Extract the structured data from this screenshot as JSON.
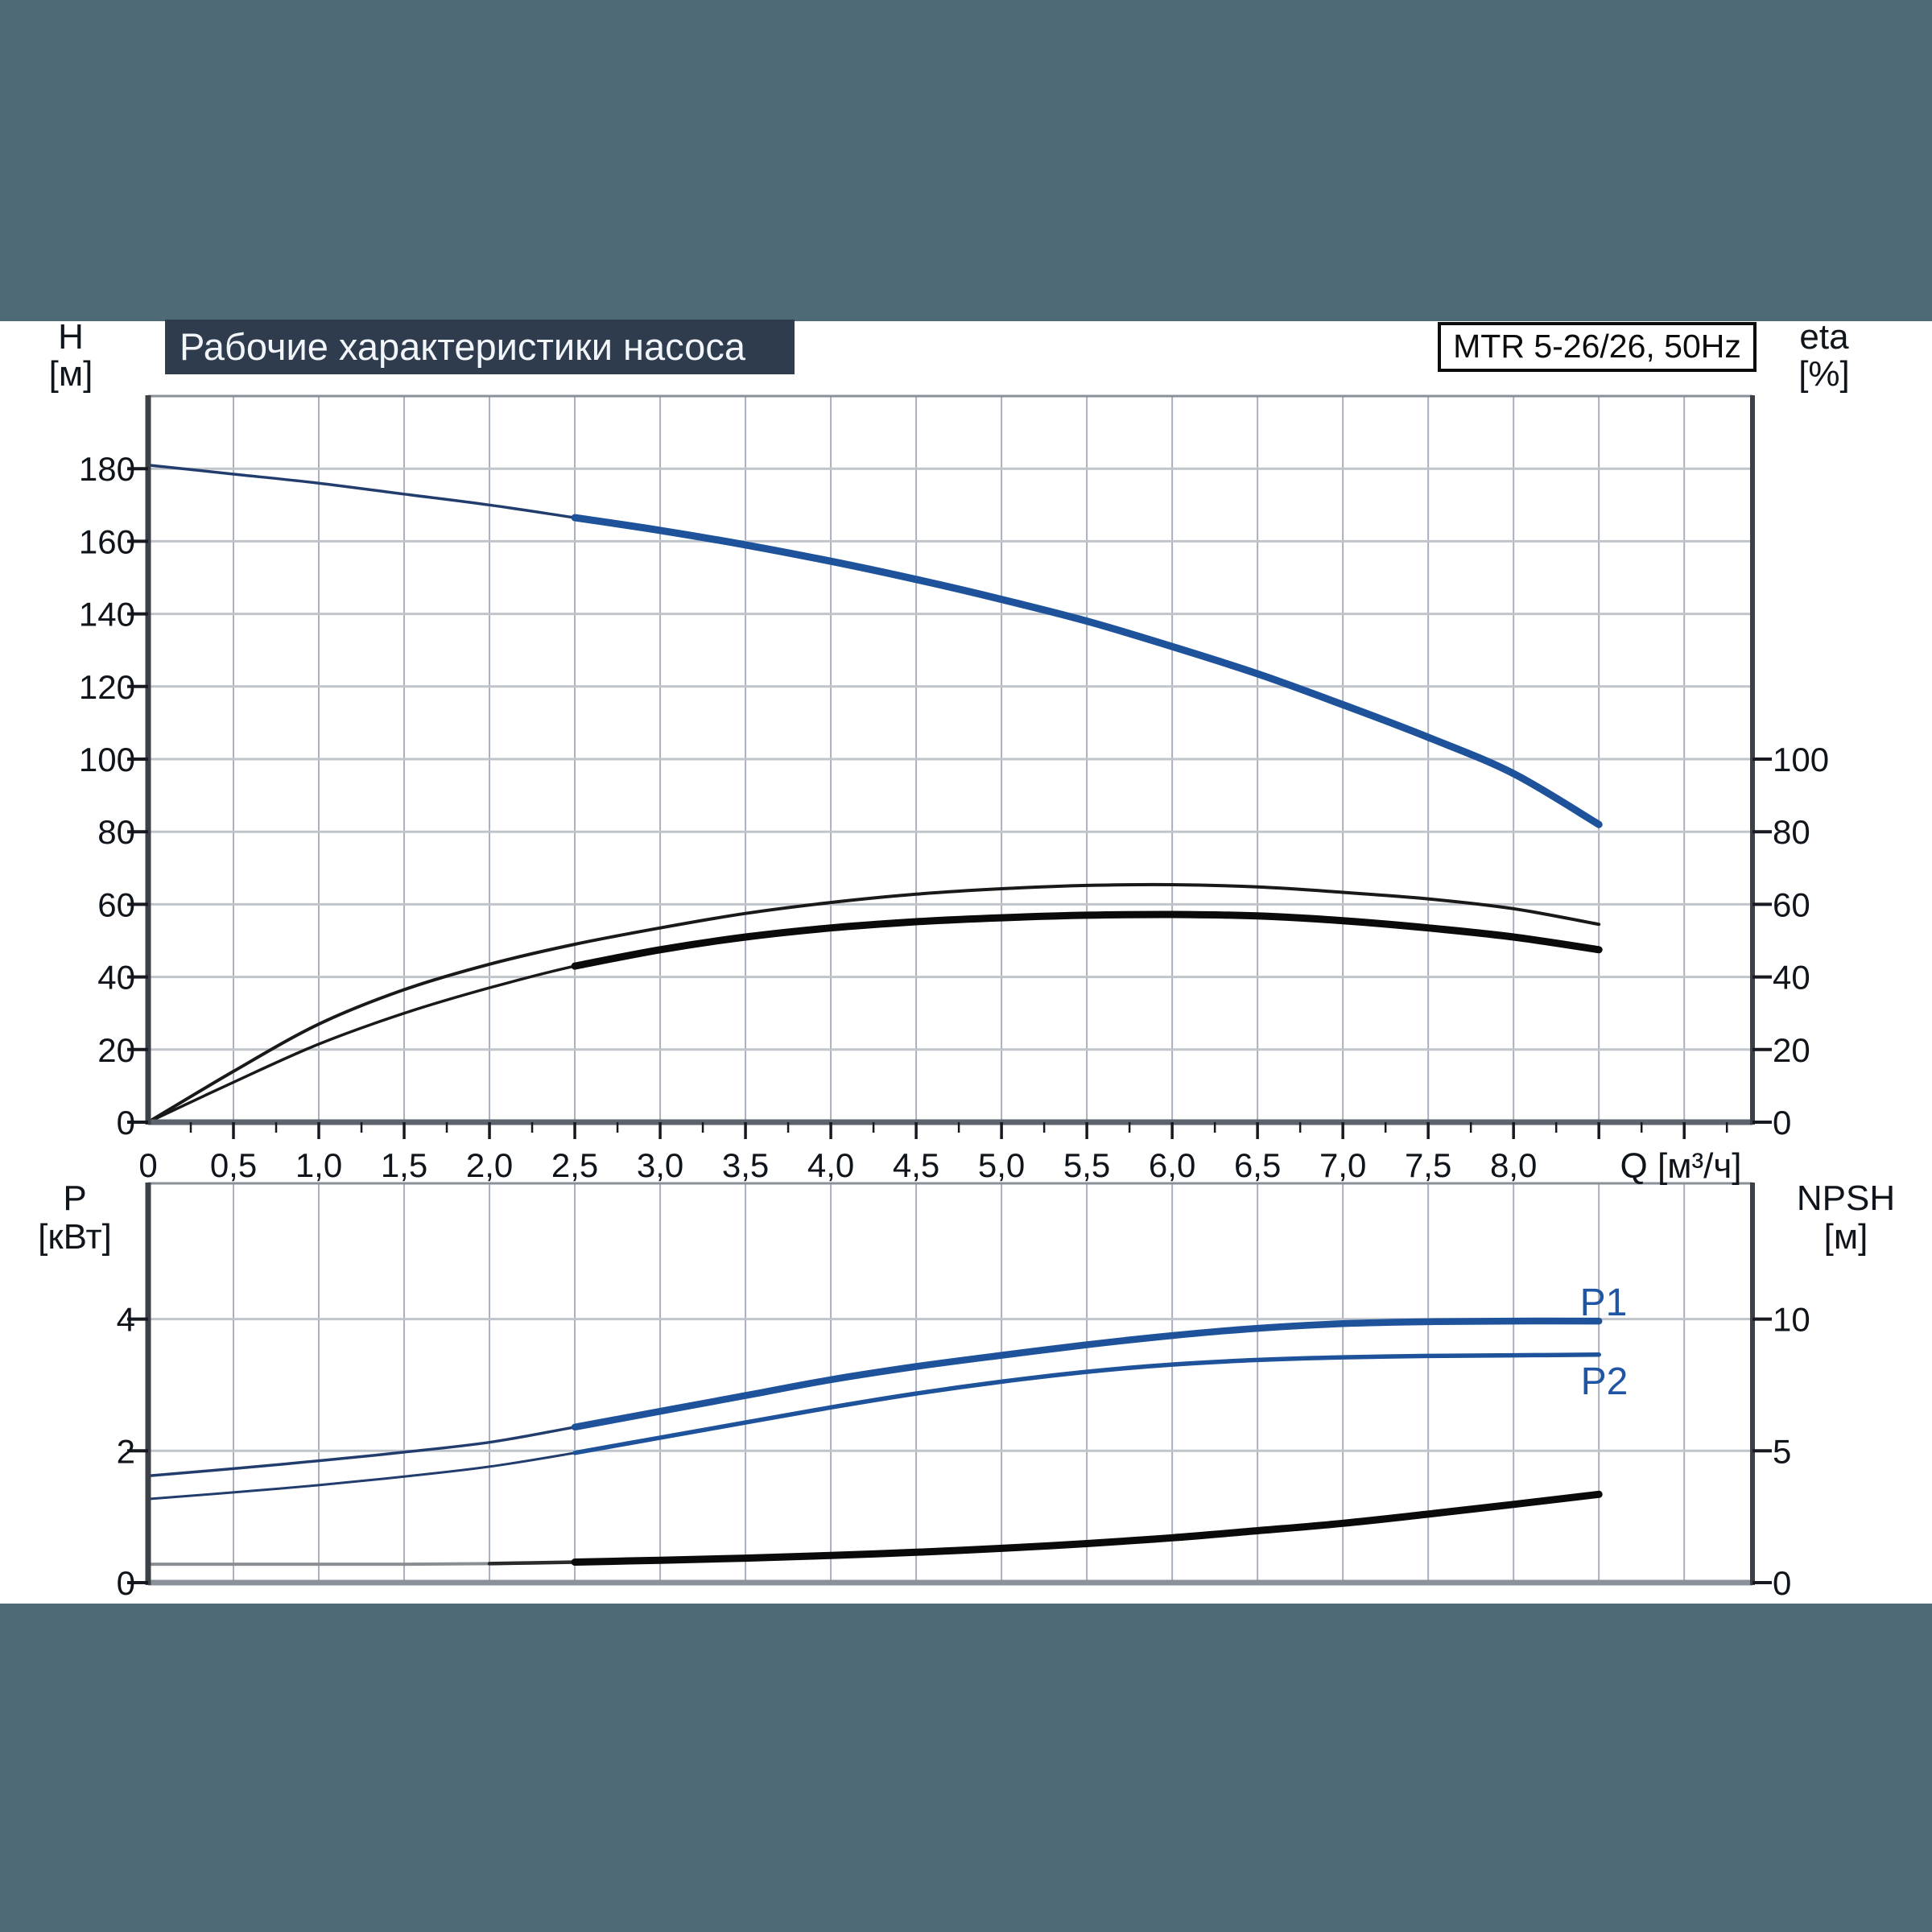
{
  "header": {
    "title": "Рабочие характеристики насоса",
    "model": "MTR 5-26/26, 50Hz"
  },
  "page": {
    "background": "#ffffff",
    "band_color": "#4e6a76",
    "title_box_bg": "#2e3c4e",
    "curve_blue": "#1e529a",
    "curve_blue_thin": "#223d6d",
    "curve_black": "#0a0a0a",
    "npsh_start_gray": "#8a8d93"
  },
  "chart_data": [
    {
      "id": "head_and_efficiency",
      "type": "line",
      "title": "Pump head (H) and efficiency (eta) vs flow",
      "x_label": "Q [м³/ч]",
      "xlim": [
        0,
        9.4
      ],
      "grid_step_x": 0.5,
      "minor_tick_step_x": 0.25,
      "x_tick_values": [
        0,
        0.5,
        1,
        1.5,
        2,
        2.5,
        3,
        3.5,
        4,
        4.5,
        5,
        5.5,
        6,
        6.5,
        7,
        7.5,
        8
      ],
      "x_tick_labels": [
        "0",
        "0,5",
        "1,0",
        "1,5",
        "2,0",
        "2,5",
        "3,0",
        "3,5",
        "4,0",
        "4,5",
        "5,0",
        "5,5",
        "6,0",
        "6,5",
        "7,0",
        "7,5",
        "8,0"
      ],
      "left_axis": {
        "label": "H",
        "unit": "[м]",
        "lim": [
          0,
          200
        ],
        "grid_step": 20,
        "ticks": [
          0,
          20,
          40,
          60,
          80,
          100,
          120,
          140,
          160,
          180
        ]
      },
      "right_axis": {
        "label": "eta",
        "unit": "[%]",
        "ticks": [
          0,
          20,
          40,
          60,
          80,
          100
        ],
        "note": "eta % labels share gridlines with H values 0-100"
      },
      "rated_range_from_q": 2.5,
      "series": [
        {
          "name": "H",
          "axis": "left",
          "points": [
            [
              0,
              181
            ],
            [
              0.5,
              178.5
            ],
            [
              1,
              176
            ],
            [
              1.5,
              173
            ],
            [
              2,
              170
            ],
            [
              2.5,
              166.5
            ],
            [
              3,
              163
            ],
            [
              3.5,
              159
            ],
            [
              4,
              154.5
            ],
            [
              4.5,
              149.5
            ],
            [
              5,
              144
            ],
            [
              5.5,
              138
            ],
            [
              6,
              131
            ],
            [
              6.5,
              123.5
            ],
            [
              7,
              115
            ],
            [
              7.5,
              106
            ],
            [
              8,
              96
            ],
            [
              8.5,
              82
            ]
          ]
        },
        {
          "name": "eta_max_impeller",
          "axis": "right",
          "points": [
            [
              0,
              0
            ],
            [
              0.5,
              14
            ],
            [
              1,
              27
            ],
            [
              1.5,
              36.5
            ],
            [
              2,
              43.5
            ],
            [
              2.5,
              49
            ],
            [
              3,
              53.5
            ],
            [
              3.5,
              57.5
            ],
            [
              4,
              60.5
            ],
            [
              4.5,
              62.8
            ],
            [
              5,
              64.3
            ],
            [
              5.5,
              65.2
            ],
            [
              6,
              65.4
            ],
            [
              6.5,
              64.8
            ],
            [
              7,
              63.3
            ],
            [
              7.5,
              61.5
            ],
            [
              8,
              58.8
            ],
            [
              8.5,
              54.5
            ]
          ]
        },
        {
          "name": "eta_rated",
          "axis": "right",
          "points": [
            [
              0,
              0
            ],
            [
              0.5,
              11
            ],
            [
              1,
              21.5
            ],
            [
              1.5,
              30
            ],
            [
              2,
              37
            ],
            [
              2.5,
              43
            ],
            [
              3,
              47.5
            ],
            [
              3.5,
              51
            ],
            [
              4,
              53.5
            ],
            [
              4.5,
              55.2
            ],
            [
              5,
              56.3
            ],
            [
              5.5,
              57
            ],
            [
              6,
              57.2
            ],
            [
              6.5,
              56.8
            ],
            [
              7,
              55.5
            ],
            [
              7.5,
              53.5
            ],
            [
              8,
              51
            ],
            [
              8.5,
              47.5
            ]
          ]
        }
      ]
    },
    {
      "id": "power_and_npsh",
      "type": "line",
      "title": "Power (P1, P2) and NPSH vs flow",
      "xlim": [
        0,
        9.4
      ],
      "grid_step_x": 0.5,
      "left_axis": {
        "label": "P",
        "unit": "[кВт]",
        "lim": [
          0,
          6.06
        ],
        "ticks": [
          0,
          2,
          4
        ]
      },
      "right_axis": {
        "label": "NPSH",
        "unit": "[м]",
        "ticks": [
          0,
          5,
          10
        ],
        "scale_to_left_axis": 0.4
      },
      "rated_range_from_q": 2.5,
      "series": [
        {
          "name": "P1",
          "label": "P1",
          "axis": "left",
          "points": [
            [
              0,
              1.62
            ],
            [
              0.5,
              1.73
            ],
            [
              1,
              1.85
            ],
            [
              1.5,
              1.98
            ],
            [
              2,
              2.13
            ],
            [
              2.5,
              2.36
            ],
            [
              3,
              2.6
            ],
            [
              3.5,
              2.84
            ],
            [
              4,
              3.08
            ],
            [
              4.5,
              3.28
            ],
            [
              5,
              3.45
            ],
            [
              5.5,
              3.61
            ],
            [
              6,
              3.75
            ],
            [
              6.5,
              3.86
            ],
            [
              7,
              3.93
            ],
            [
              7.5,
              3.96
            ],
            [
              8,
              3.97
            ],
            [
              8.5,
              3.97
            ]
          ]
        },
        {
          "name": "P2",
          "label": "P2",
          "axis": "left",
          "points": [
            [
              0,
              1.27
            ],
            [
              0.5,
              1.37
            ],
            [
              1,
              1.48
            ],
            [
              1.5,
              1.61
            ],
            [
              2,
              1.76
            ],
            [
              2.5,
              1.97
            ],
            [
              3,
              2.2
            ],
            [
              3.5,
              2.43
            ],
            [
              4,
              2.66
            ],
            [
              4.5,
              2.87
            ],
            [
              5,
              3.05
            ],
            [
              5.5,
              3.2
            ],
            [
              6,
              3.31
            ],
            [
              6.5,
              3.38
            ],
            [
              7,
              3.42
            ],
            [
              7.5,
              3.44
            ],
            [
              8,
              3.45
            ],
            [
              8.5,
              3.46
            ]
          ]
        },
        {
          "name": "NPSH",
          "axis": "right",
          "gray_until_q": 2.0,
          "points": [
            [
              0,
              0.7
            ],
            [
              0.5,
              0.7
            ],
            [
              1,
              0.7
            ],
            [
              1.5,
              0.7
            ],
            [
              2,
              0.72
            ],
            [
              2.5,
              0.78
            ],
            [
              3,
              0.85
            ],
            [
              3.5,
              0.93
            ],
            [
              4,
              1.03
            ],
            [
              4.5,
              1.15
            ],
            [
              5,
              1.3
            ],
            [
              5.5,
              1.48
            ],
            [
              6,
              1.7
            ],
            [
              6.5,
              1.97
            ],
            [
              7,
              2.25
            ],
            [
              7.5,
              2.6
            ],
            [
              8,
              2.97
            ],
            [
              8.5,
              3.35
            ]
          ]
        }
      ]
    }
  ]
}
